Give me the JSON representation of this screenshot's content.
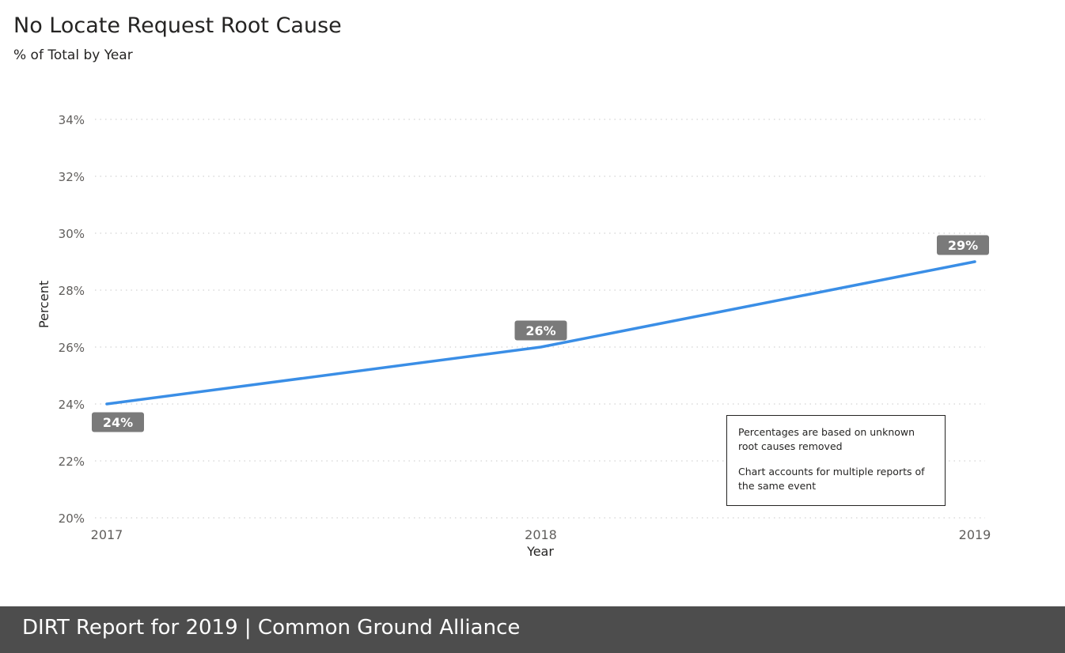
{
  "header": {
    "title": "No Locate Request Root Cause",
    "subtitle": "% of Total by Year"
  },
  "chart_data": {
    "type": "line",
    "x": [
      "2017",
      "2018",
      "2019"
    ],
    "series": [
      {
        "values": [
          24,
          26,
          29
        ],
        "data_labels": [
          "24%",
          "26%",
          "29%"
        ]
      }
    ],
    "xlabel": "Year",
    "ylabel": "Percent",
    "ylim": [
      20,
      34
    ],
    "yticks": [
      20,
      22,
      24,
      26,
      28,
      30,
      32,
      34
    ],
    "ytick_labels": [
      "20%",
      "22%",
      "24%",
      "26%",
      "28%",
      "30%",
      "32%",
      "34%"
    ],
    "grid": true,
    "line_color": "#3a8ee6",
    "label_bg_color": "#7a7a7a"
  },
  "notes": [
    "Percentages are based on unknown root causes removed",
    "Chart accounts for multiple reports of the same event"
  ],
  "footer": {
    "text": "DIRT Report for 2019  | Common Ground Alliance",
    "bg_color": "#4d4d4d"
  }
}
